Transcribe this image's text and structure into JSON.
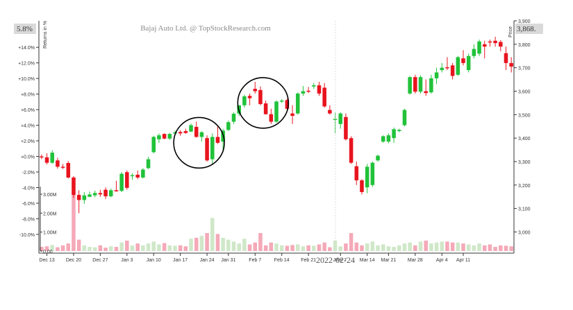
{
  "chart_data": {
    "type": "candlestick",
    "title": "Bajaj Auto Ltd. @ TopStockResearch.com",
    "left_axis_label": "Returns in %",
    "right_axis_label": "Price",
    "return_badge": "5.8%",
    "price_badge": "3,868.",
    "hover_date_label": "2022-02-24",
    "price_axis": {
      "min": 2960,
      "max": 3900,
      "ticks": [
        3000,
        3100,
        3200,
        3300,
        3400,
        3500,
        3600,
        3700,
        3800,
        3900
      ],
      "tick_labels": [
        "3,000",
        "3,100",
        "3,200",
        "3,300",
        "3,400",
        "3,500",
        "3,600",
        "3,700",
        "3,800",
        "3,900"
      ]
    },
    "return_axis": {
      "ticks": [
        14,
        12,
        10,
        8,
        6,
        4,
        2,
        0,
        -2,
        -4,
        -6,
        -8,
        -10
      ],
      "tick_labels": [
        "+14.0%",
        "+12.0%",
        "+10.0%",
        "+8.0%",
        "+6.0%",
        "+4.0%",
        "+2.0%",
        "+0.0%",
        "-2.0%",
        "-4.0%",
        "-6.0%",
        "-8.0%",
        "-10.0%"
      ]
    },
    "volume_axis": {
      "max": 3.4,
      "ticks": [
        0,
        1,
        2,
        3
      ],
      "tick_labels": [
        "0.00",
        "1.00M",
        "2.00M",
        "3.00M"
      ]
    },
    "x_axis": {
      "labels": [
        "Dec 13",
        "Dec 20",
        "Dec 27",
        "Jan 3",
        "Jan 10",
        "Jan 17",
        "Jan 24",
        "Jan 31",
        "Feb 7",
        "Feb 14",
        "Feb 21",
        "Mar 7",
        "Mar 14",
        "Mar 21",
        "Mar 28",
        "Apr 4",
        "Apr 11"
      ],
      "label_index": [
        1,
        6,
        11,
        16,
        21,
        26,
        31,
        35,
        40,
        45,
        50,
        56,
        61,
        65,
        70,
        75,
        79
      ]
    },
    "colors": {
      "up": "#21c23a",
      "down": "#e8141e",
      "vol_up": "#cfe8c8",
      "vol_down": "#f5a9b8"
    },
    "highlight_circles": [
      {
        "from_index": 27,
        "to_index": 32
      },
      {
        "from_index": 39,
        "to_index": 44
      }
    ],
    "candles": [
      {
        "o": 3322,
        "h": 3330,
        "l": 3310,
        "c": 3318,
        "v": 0.22
      },
      {
        "o": 3318,
        "h": 3335,
        "l": 3288,
        "c": 3295,
        "v": 0.25
      },
      {
        "o": 3295,
        "h": 3348,
        "l": 3290,
        "c": 3338,
        "v": 0.32
      },
      {
        "o": 3305,
        "h": 3316,
        "l": 3270,
        "c": 3278,
        "v": 0.2
      },
      {
        "o": 3278,
        "h": 3290,
        "l": 3268,
        "c": 3276,
        "v": 0.3
      },
      {
        "o": 3294,
        "h": 3302,
        "l": 3228,
        "c": 3232,
        "v": 0.4
      },
      {
        "o": 3232,
        "h": 3238,
        "l": 3145,
        "c": 3158,
        "v": 3.1
      },
      {
        "o": 3158,
        "h": 3178,
        "l": 3080,
        "c": 3136,
        "v": 0.6
      },
      {
        "o": 3136,
        "h": 3170,
        "l": 3120,
        "c": 3156,
        "v": 0.3
      },
      {
        "o": 3150,
        "h": 3172,
        "l": 3148,
        "c": 3160,
        "v": 0.22
      },
      {
        "o": 3156,
        "h": 3176,
        "l": 3148,
        "c": 3166,
        "v": 0.2
      },
      {
        "o": 3166,
        "h": 3180,
        "l": 3150,
        "c": 3160,
        "v": 0.3
      },
      {
        "o": 3180,
        "h": 3190,
        "l": 3140,
        "c": 3152,
        "v": 0.18
      },
      {
        "o": 3152,
        "h": 3185,
        "l": 3148,
        "c": 3178,
        "v": 0.25
      },
      {
        "o": 3178,
        "h": 3218,
        "l": 3172,
        "c": 3173,
        "v": 0.22
      },
      {
        "o": 3175,
        "h": 3255,
        "l": 3170,
        "c": 3248,
        "v": 0.45
      },
      {
        "o": 3255,
        "h": 3262,
        "l": 3180,
        "c": 3188,
        "v": 0.55
      },
      {
        "o": 3238,
        "h": 3250,
        "l": 3222,
        "c": 3242,
        "v": 0.3
      },
      {
        "o": 3244,
        "h": 3262,
        "l": 3225,
        "c": 3232,
        "v": 0.4
      },
      {
        "o": 3232,
        "h": 3272,
        "l": 3228,
        "c": 3266,
        "v": 0.3
      },
      {
        "o": 3272,
        "h": 3320,
        "l": 3268,
        "c": 3310,
        "v": 0.4
      },
      {
        "o": 3340,
        "h": 3410,
        "l": 3335,
        "c": 3405,
        "v": 0.5
      },
      {
        "o": 3395,
        "h": 3420,
        "l": 3380,
        "c": 3412,
        "v": 0.35
      },
      {
        "o": 3418,
        "h": 3420,
        "l": 3395,
        "c": 3398,
        "v": 0.42
      },
      {
        "o": 3398,
        "h": 3422,
        "l": 3392,
        "c": 3418,
        "v": 0.3
      },
      {
        "o": 3420,
        "h": 3432,
        "l": 3412,
        "c": 3424,
        "v": 0.28
      },
      {
        "o": 3426,
        "h": 3434,
        "l": 3410,
        "c": 3420,
        "v": 0.3
      },
      {
        "o": 3430,
        "h": 3440,
        "l": 3418,
        "c": 3422,
        "v": 0.25
      },
      {
        "o": 3428,
        "h": 3462,
        "l": 3425,
        "c": 3455,
        "v": 0.65
      },
      {
        "o": 3448,
        "h": 3470,
        "l": 3402,
        "c": 3405,
        "v": 0.7
      },
      {
        "o": 3405,
        "h": 3430,
        "l": 3385,
        "c": 3425,
        "v": 0.8
      },
      {
        "o": 3400,
        "h": 3412,
        "l": 3300,
        "c": 3305,
        "v": 0.95
      },
      {
        "o": 3310,
        "h": 3420,
        "l": 3290,
        "c": 3405,
        "v": 1.75
      },
      {
        "o": 3405,
        "h": 3450,
        "l": 3375,
        "c": 3380,
        "v": 0.9
      },
      {
        "o": 3385,
        "h": 3440,
        "l": 3340,
        "c": 3432,
        "v": 0.7
      },
      {
        "o": 3435,
        "h": 3475,
        "l": 3430,
        "c": 3468,
        "v": 0.6
      },
      {
        "o": 3470,
        "h": 3510,
        "l": 3460,
        "c": 3504,
        "v": 0.5
      },
      {
        "o": 3505,
        "h": 3540,
        "l": 3495,
        "c": 3540,
        "v": 0.4
      },
      {
        "o": 3540,
        "h": 3585,
        "l": 3530,
        "c": 3578,
        "v": 0.65
      },
      {
        "o": 3580,
        "h": 3590,
        "l": 3540,
        "c": 3570,
        "v": 0.35
      },
      {
        "o": 3610,
        "h": 3640,
        "l": 3590,
        "c": 3600,
        "v": 0.45
      },
      {
        "o": 3605,
        "h": 3620,
        "l": 3540,
        "c": 3545,
        "v": 0.95
      },
      {
        "o": 3548,
        "h": 3560,
        "l": 3500,
        "c": 3502,
        "v": 0.3
      },
      {
        "o": 3502,
        "h": 3525,
        "l": 3460,
        "c": 3470,
        "v": 0.45
      },
      {
        "o": 3470,
        "h": 3560,
        "l": 3465,
        "c": 3556,
        "v": 0.4
      },
      {
        "o": 3556,
        "h": 3566,
        "l": 3550,
        "c": 3560,
        "v": 0.3
      },
      {
        "o": 3562,
        "h": 3568,
        "l": 3520,
        "c": 3525,
        "v": 0.28
      },
      {
        "o": 3505,
        "h": 3540,
        "l": 3460,
        "c": 3495,
        "v": 0.32
      },
      {
        "o": 3505,
        "h": 3595,
        "l": 3500,
        "c": 3590,
        "v": 0.35
      },
      {
        "o": 3590,
        "h": 3622,
        "l": 3580,
        "c": 3600,
        "v": 0.25
      },
      {
        "o": 3602,
        "h": 3618,
        "l": 3592,
        "c": 3598,
        "v": 0.3
      },
      {
        "o": 3620,
        "h": 3635,
        "l": 3610,
        "c": 3625,
        "v": 0.28
      },
      {
        "o": 3625,
        "h": 3640,
        "l": 3580,
        "c": 3590,
        "v": 0.35
      },
      {
        "o": 3615,
        "h": 3635,
        "l": 3530,
        "c": 3535,
        "v": 0.45
      },
      {
        "o": 3520,
        "h": 3540,
        "l": 3500,
        "c": 3505,
        "v": 0.2
      },
      {
        "o": 3480,
        "h": 3510,
        "l": 3420,
        "c": 3482,
        "v": 0.55
      },
      {
        "o": 3460,
        "h": 3510,
        "l": 3440,
        "c": 3505,
        "v": 0.25
      },
      {
        "o": 3490,
        "h": 3505,
        "l": 3390,
        "c": 3395,
        "v": 0.4
      },
      {
        "o": 3400,
        "h": 3408,
        "l": 3290,
        "c": 3295,
        "v": 0.95
      },
      {
        "o": 3280,
        "h": 3300,
        "l": 3200,
        "c": 3220,
        "v": 0.45
      },
      {
        "o": 3220,
        "h": 3225,
        "l": 3160,
        "c": 3170,
        "v": 0.3
      },
      {
        "o": 3190,
        "h": 3290,
        "l": 3165,
        "c": 3278,
        "v": 0.4
      },
      {
        "o": 3200,
        "h": 3300,
        "l": 3192,
        "c": 3295,
        "v": 0.5
      },
      {
        "o": 3305,
        "h": 3330,
        "l": 3300,
        "c": 3325,
        "v": 0.3
      },
      {
        "o": 3385,
        "h": 3412,
        "l": 3380,
        "c": 3408,
        "v": 0.35
      },
      {
        "o": 3385,
        "h": 3420,
        "l": 3378,
        "c": 3412,
        "v": 0.25
      },
      {
        "o": 3400,
        "h": 3445,
        "l": 3380,
        "c": 3438,
        "v": 0.22
      },
      {
        "o": 3430,
        "h": 3440,
        "l": 3425,
        "c": 3435,
        "v": 0.3
      },
      {
        "o": 3455,
        "h": 3525,
        "l": 3450,
        "c": 3520,
        "v": 0.4
      },
      {
        "o": 3590,
        "h": 3665,
        "l": 3585,
        "c": 3660,
        "v": 0.45
      },
      {
        "o": 3660,
        "h": 3670,
        "l": 3590,
        "c": 3598,
        "v": 0.3
      },
      {
        "o": 3598,
        "h": 3668,
        "l": 3590,
        "c": 3660,
        "v": 0.5
      },
      {
        "o": 3600,
        "h": 3650,
        "l": 3580,
        "c": 3592,
        "v": 0.55
      },
      {
        "o": 3595,
        "h": 3670,
        "l": 3590,
        "c": 3655,
        "v": 0.4
      },
      {
        "o": 3655,
        "h": 3700,
        "l": 3630,
        "c": 3680,
        "v": 0.45
      },
      {
        "o": 3690,
        "h": 3720,
        "l": 3680,
        "c": 3700,
        "v": 0.5
      },
      {
        "o": 3702,
        "h": 3745,
        "l": 3690,
        "c": 3700,
        "v": 0.5
      },
      {
        "o": 3710,
        "h": 3720,
        "l": 3650,
        "c": 3665,
        "v": 0.45
      },
      {
        "o": 3670,
        "h": 3750,
        "l": 3665,
        "c": 3745,
        "v": 0.45
      },
      {
        "o": 3740,
        "h": 3775,
        "l": 3710,
        "c": 3720,
        "v": 0.4
      },
      {
        "o": 3690,
        "h": 3760,
        "l": 3680,
        "c": 3750,
        "v": 0.35
      },
      {
        "o": 3750,
        "h": 3800,
        "l": 3740,
        "c": 3780,
        "v": 0.3
      },
      {
        "o": 3760,
        "h": 3820,
        "l": 3750,
        "c": 3812,
        "v": 0.4
      },
      {
        "o": 3800,
        "h": 3815,
        "l": 3740,
        "c": 3790,
        "v": 0.3
      },
      {
        "o": 3812,
        "h": 3820,
        "l": 3790,
        "c": 3810,
        "v": 0.35
      },
      {
        "o": 3815,
        "h": 3832,
        "l": 3790,
        "c": 3805,
        "v": 0.22
      },
      {
        "o": 3810,
        "h": 3818,
        "l": 3770,
        "c": 3790,
        "v": 0.3
      },
      {
        "o": 3762,
        "h": 3790,
        "l": 3690,
        "c": 3720,
        "v": 0.28
      },
      {
        "o": 3720,
        "h": 3745,
        "l": 3680,
        "c": 3705,
        "v": 0.25
      }
    ]
  }
}
